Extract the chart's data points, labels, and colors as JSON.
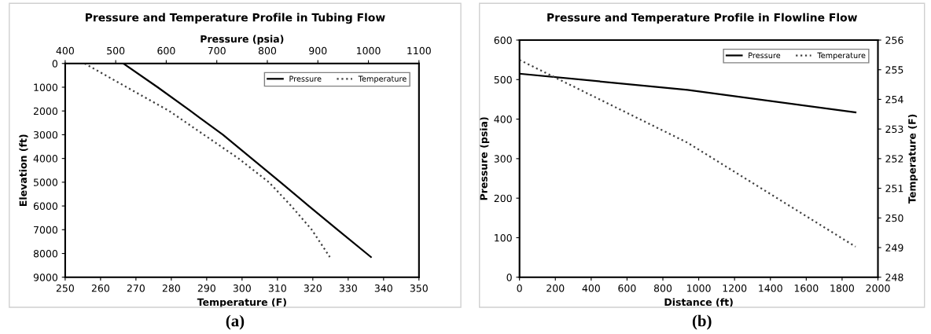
{
  "chart_data": [
    {
      "type": "line",
      "title": "Pressure and Temperature Profile in Tubing Flow",
      "xlabel": "Temperature (F)",
      "x2label": "Pressure (psia)",
      "ylabel": "Elevation (ft)",
      "xlim": [
        250,
        350
      ],
      "xticks": [
        250,
        260,
        270,
        280,
        290,
        300,
        310,
        320,
        330,
        340,
        350
      ],
      "x2lim": [
        400,
        1100
      ],
      "x2ticks": [
        400,
        500,
        600,
        700,
        800,
        900,
        1000,
        1100
      ],
      "ylim": [
        9000,
        0
      ],
      "yticks": [
        0,
        1000,
        2000,
        3000,
        4000,
        5000,
        6000,
        7000,
        8000,
        9000
      ],
      "grid": false,
      "legend": "top right",
      "annotations": [
        "(a)"
      ],
      "series": [
        {
          "name": "Pressure",
          "color": "#000000",
          "line_style": "solid",
          "axis": "x2",
          "x": [
            515,
            583,
            648,
            712,
            769,
            826,
            882,
            939,
            1005
          ],
          "values": [
            0,
            1000,
            2000,
            3000,
            4000,
            5000,
            6000,
            7000,
            8150
          ]
        },
        {
          "name": "Temperature",
          "color": "#404040",
          "line_style": "dotted",
          "x": [
            255.5,
            267.4,
            279.4,
            289.2,
            299,
            307.6,
            313.9,
            319.7,
            324.8
          ],
          "values": [
            0,
            1000,
            2000,
            3000,
            4000,
            5000,
            6000,
            7000,
            8150
          ]
        }
      ]
    },
    {
      "type": "line",
      "title": "Pressure and Temperature Profile in Flowline Flow",
      "xlabel": "Distance (ft)",
      "ylabel": "Pressure (psia)",
      "y2label": "Temperature (F)",
      "xlim": [
        0,
        2000
      ],
      "xticks": [
        0,
        200,
        400,
        600,
        800,
        1000,
        1200,
        1400,
        1600,
        1800,
        2000
      ],
      "ylim": [
        0,
        600
      ],
      "yticks": [
        0,
        100,
        200,
        300,
        400,
        500,
        600
      ],
      "y2lim": [
        248,
        256
      ],
      "y2ticks": [
        248,
        249,
        250,
        251,
        252,
        253,
        254,
        255,
        256
      ],
      "grid": false,
      "legend": "top right",
      "annotations": [
        "(b)"
      ],
      "series": [
        {
          "name": "Pressure",
          "color": "#000000",
          "line_style": "solid",
          "x": [
            0,
            937,
            1875
          ],
          "values": [
            515,
            474,
            417
          ]
        },
        {
          "name": "Temperature",
          "color": "#404040",
          "line_style": "dotted",
          "axis": "y2",
          "x": [
            0,
            937,
            1875
          ],
          "values": [
            255.33,
            252.54,
            249.03
          ]
        }
      ]
    }
  ]
}
